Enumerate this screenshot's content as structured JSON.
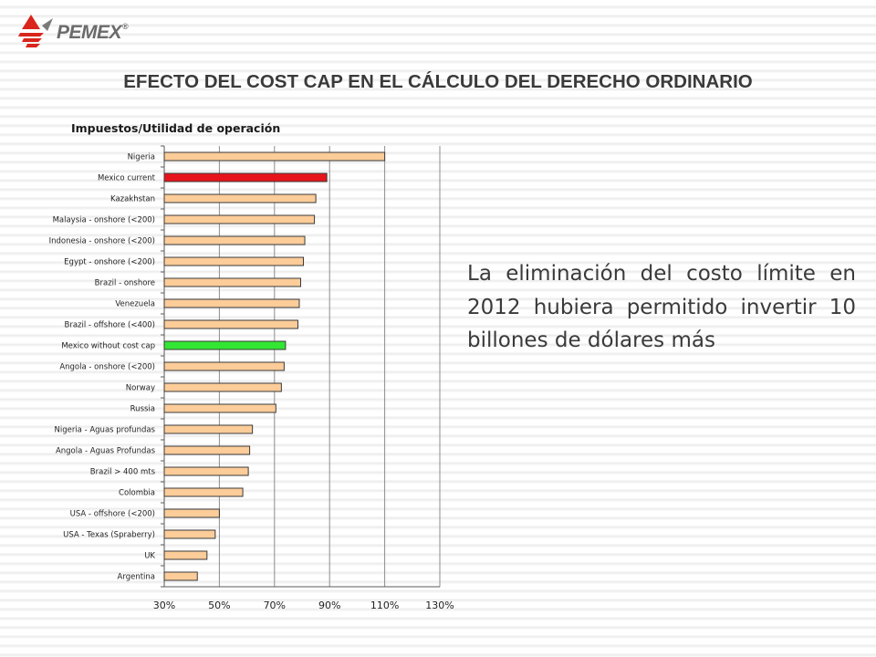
{
  "header": {
    "logo_text": "PEMEX",
    "logo_mark": "®",
    "title": "EFECTO DEL COST CAP EN EL CÁLCULO DEL DERECHO ORDINARIO"
  },
  "body_text": "La eliminación del costo límite en 2012 hubiera permitido invertir 10 billones de dólares más",
  "colors": {
    "default_bar": "#fccc99",
    "bar_stroke": "#3a3a3a",
    "highlight_red": "#e8141c",
    "highlight_green": "#33e633",
    "grid": "#8c8c8c"
  },
  "chart_data": {
    "type": "bar",
    "orientation": "horizontal",
    "title": "Impuestos/Utilidad de operación",
    "xlabel": "",
    "ylabel": "",
    "xlim": [
      0.3,
      1.3
    ],
    "xticks": [
      0.3,
      0.5,
      0.7,
      0.9,
      1.1,
      1.3
    ],
    "xtick_labels": [
      "30%",
      "50%",
      "70%",
      "90%",
      "110%",
      "130%"
    ],
    "grid": "vertical",
    "legend": "none",
    "categories": [
      "Nigeria",
      "Mexico current",
      "Kazakhstan",
      "Malaysia - onshore (<200)",
      "Indonesia - onshore (<200)",
      "Egypt - onshore (<200)",
      "Brazil - onshore",
      "Venezuela",
      "Brazil - offshore (<400)",
      "Mexico without cost cap",
      "Angola - onshore (<200)",
      "Norway",
      "Russia",
      "Nigeria - Aguas profundas",
      "Angola - Aguas Profundas",
      "Brazil > 400 mts",
      "Colombia",
      "USA - offshore (<200)",
      "USA - Texas (Spraberry)",
      "UK",
      "Argentina"
    ],
    "values": [
      1.1,
      0.89,
      0.85,
      0.845,
      0.81,
      0.805,
      0.795,
      0.79,
      0.785,
      0.74,
      0.735,
      0.725,
      0.705,
      0.62,
      0.61,
      0.605,
      0.585,
      0.5,
      0.485,
      0.455,
      0.42
    ],
    "bar_colors": {
      "Mexico current": "#e8141c",
      "Mexico without cost cap": "#33e633"
    }
  }
}
